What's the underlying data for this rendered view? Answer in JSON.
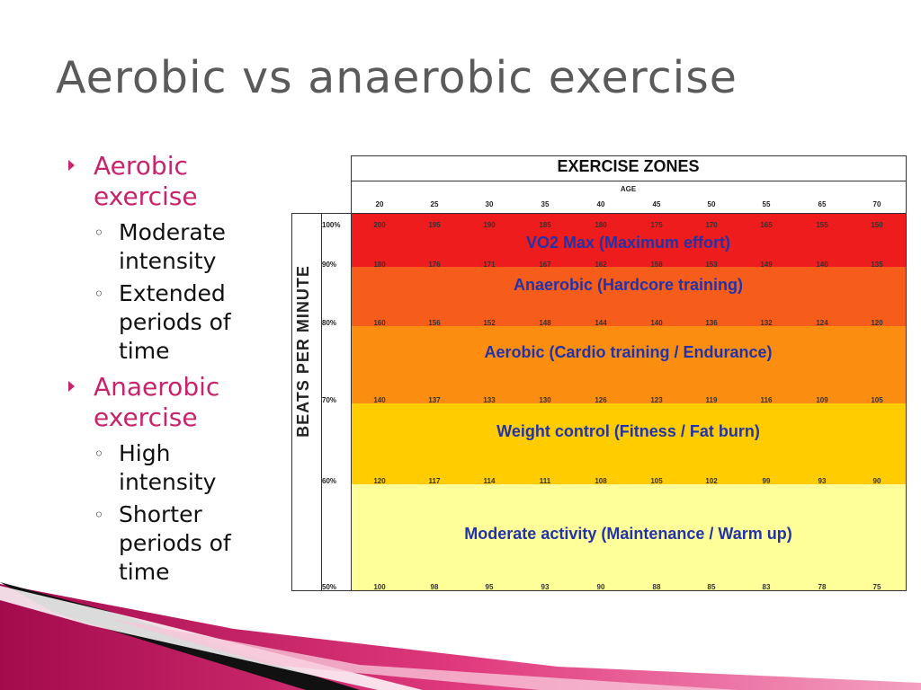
{
  "title": "Aerobic vs anaerobic exercise",
  "bullets": [
    {
      "label": "Aerobic exercise",
      "subs": [
        "Moderate intensity",
        "Extended periods of time"
      ]
    },
    {
      "label": "Anaerobic exercise",
      "subs": [
        "High intensity",
        "Shorter periods of time"
      ]
    }
  ],
  "chart_data": {
    "type": "table",
    "title": "EXERCISE ZONES",
    "xlabel": "AGE",
    "ylabel": "BEATS PER MINUTE",
    "ages": [
      "20",
      "25",
      "30",
      "35",
      "40",
      "45",
      "50",
      "55",
      "65",
      "70"
    ],
    "rows": [
      {
        "percent": "100%",
        "values": [
          "200",
          "195",
          "190",
          "185",
          "180",
          "175",
          "170",
          "165",
          "155",
          "150"
        ]
      },
      {
        "percent": "90%",
        "values": [
          "180",
          "176",
          "171",
          "167",
          "162",
          "158",
          "153",
          "149",
          "140",
          "135"
        ]
      },
      {
        "percent": "80%",
        "values": [
          "160",
          "156",
          "152",
          "148",
          "144",
          "140",
          "136",
          "132",
          "124",
          "120"
        ]
      },
      {
        "percent": "70%",
        "values": [
          "140",
          "137",
          "133",
          "130",
          "126",
          "123",
          "119",
          "116",
          "109",
          "105"
        ]
      },
      {
        "percent": "60%",
        "values": [
          "120",
          "117",
          "114",
          "111",
          "108",
          "105",
          "102",
          "99",
          "93",
          "90"
        ]
      },
      {
        "percent": "50%",
        "values": [
          "100",
          "98",
          "95",
          "93",
          "90",
          "88",
          "85",
          "83",
          "78",
          "75"
        ]
      }
    ],
    "zones": [
      {
        "label": "VO2 Max (Maximum effort)",
        "range": [
          "90%",
          "100%"
        ],
        "color": "#ee1c1c"
      },
      {
        "label": "Anaerobic (Hardcore training)",
        "range": [
          "80%",
          "90%"
        ],
        "color": "#f75d1a"
      },
      {
        "label": "Aerobic (Cardio training / Endurance)",
        "range": [
          "70%",
          "80%"
        ],
        "color": "#fb8d10"
      },
      {
        "label": "Weight control (Fitness / Fat burn)",
        "range": [
          "60%",
          "70%"
        ],
        "color": "#ffcc00"
      },
      {
        "label": "Moderate activity (Maintenance / Warm up)",
        "range": [
          "50%",
          "60%"
        ],
        "color": "#ffff99"
      }
    ]
  },
  "colors": {
    "accent": "#c8246c",
    "title": "#5a5a5a",
    "zone_label": "#2233aa"
  }
}
